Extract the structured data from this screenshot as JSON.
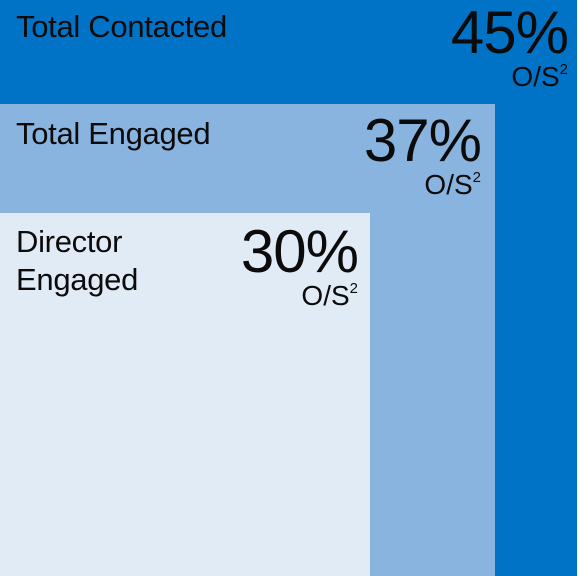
{
  "boxes": [
    {
      "label": "Total Contacted",
      "percent": "45%",
      "unit": "O/S",
      "unit_superscript": "2",
      "color": "#0073c6"
    },
    {
      "label": "Total Engaged",
      "percent": "37%",
      "unit": "O/S",
      "unit_superscript": "2",
      "color": "#8ab4e0"
    },
    {
      "label": "Director\nEngaged",
      "percent": "30%",
      "unit": "O/S",
      "unit_superscript": "2",
      "color": "#e0ebf6"
    }
  ]
}
